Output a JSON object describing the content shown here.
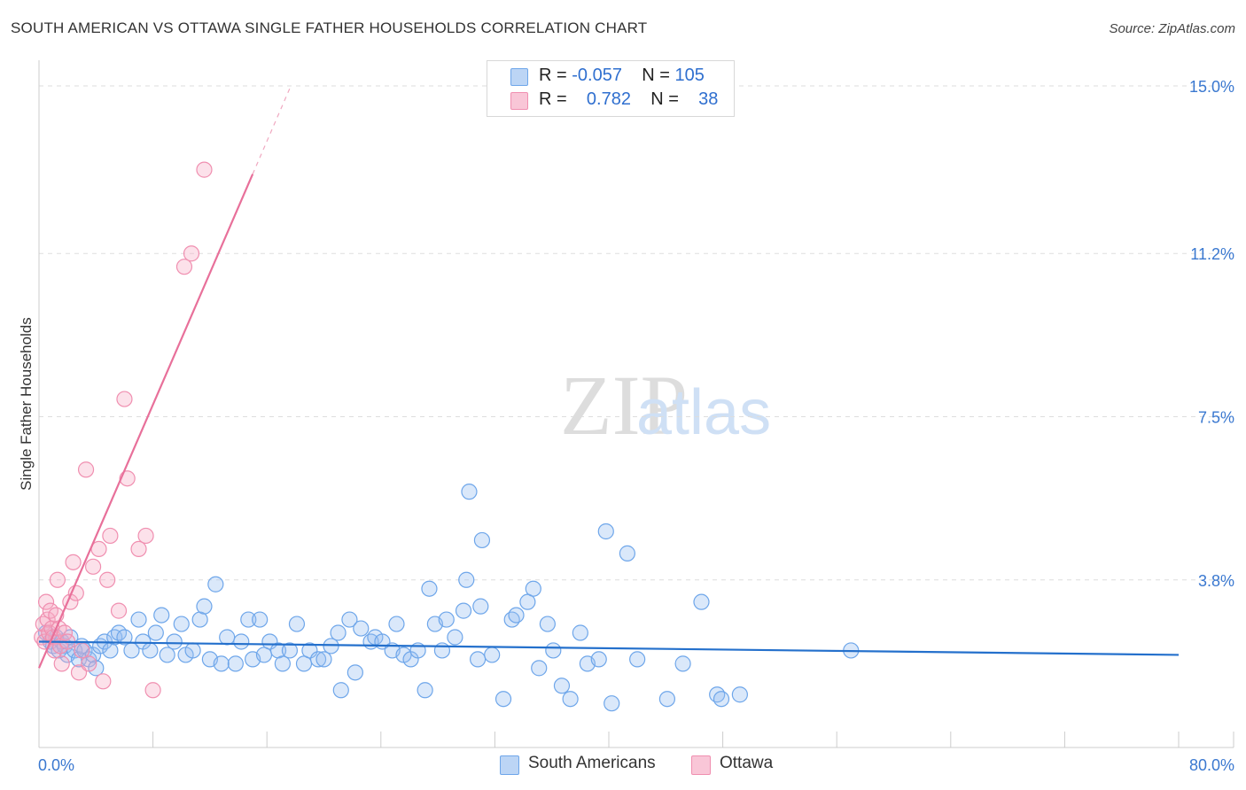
{
  "title": "SOUTH AMERICAN VS OTTAWA SINGLE FATHER HOUSEHOLDS CORRELATION CHART",
  "source": "Source: ZipAtlas.com",
  "watermark": {
    "part1": "ZIP",
    "part2": "atlas"
  },
  "legend_top": [
    {
      "r_label": "R = ",
      "r_value": "-0.057",
      "n_label": "N = ",
      "n_value": "105"
    },
    {
      "r_label": "R = ",
      "r_value": "0.782",
      "n_label": "N = ",
      "n_value": "38"
    }
  ],
  "chart_data": {
    "type": "scatter",
    "title": "SOUTH AMERICAN VS OTTAWA SINGLE FATHER HOUSEHOLDS CORRELATION CHART",
    "xlabel": "",
    "ylabel": "Single Father Households",
    "xlim": [
      0,
      80
    ],
    "ylim": [
      0,
      15
    ],
    "x_tick_labels": [
      "0.0%",
      "80.0%"
    ],
    "y_ticks": [
      3.8,
      7.5,
      11.2,
      15.0
    ],
    "y_tick_labels": [
      "3.8%",
      "7.5%",
      "11.2%",
      "15.0%"
    ],
    "grid": "horizontal dashed",
    "legend_position": "top-center and bottom",
    "colors": {
      "south_americans": "#6ea6ea",
      "ottawa": "#f08fb0",
      "blue_line": "#2470cc",
      "pink_line": "#e8709a"
    },
    "series": [
      {
        "name": "South Americans",
        "r": -0.057,
        "n": 105,
        "trend": {
          "x": [
            0,
            80
          ],
          "y": [
            2.4,
            2.1
          ]
        },
        "points": [
          [
            0.5,
            2.6
          ],
          [
            0.8,
            2.4
          ],
          [
            1.0,
            2.3
          ],
          [
            1.2,
            2.5
          ],
          [
            1.4,
            2.2
          ],
          [
            1.6,
            2.4
          ],
          [
            1.8,
            2.3
          ],
          [
            2.0,
            2.1
          ],
          [
            2.2,
            2.5
          ],
          [
            2.5,
            2.2
          ],
          [
            2.8,
            2.0
          ],
          [
            3.0,
            2.3
          ],
          [
            3.2,
            2.2
          ],
          [
            3.5,
            2.0
          ],
          [
            3.8,
            2.1
          ],
          [
            4.0,
            1.8
          ],
          [
            4.3,
            2.3
          ],
          [
            4.6,
            2.4
          ],
          [
            5.0,
            2.2
          ],
          [
            5.3,
            2.5
          ],
          [
            5.6,
            2.6
          ],
          [
            6.0,
            2.5
          ],
          [
            6.5,
            2.2
          ],
          [
            7.0,
            2.9
          ],
          [
            7.3,
            2.4
          ],
          [
            7.8,
            2.2
          ],
          [
            8.2,
            2.6
          ],
          [
            8.6,
            3.0
          ],
          [
            9.0,
            2.1
          ],
          [
            9.5,
            2.4
          ],
          [
            10.0,
            2.8
          ],
          [
            10.3,
            2.1
          ],
          [
            10.8,
            2.2
          ],
          [
            11.3,
            2.9
          ],
          [
            11.6,
            3.2
          ],
          [
            12.0,
            2.0
          ],
          [
            12.4,
            3.7
          ],
          [
            12.8,
            1.9
          ],
          [
            13.2,
            2.5
          ],
          [
            13.8,
            1.9
          ],
          [
            14.2,
            2.4
          ],
          [
            14.7,
            2.9
          ],
          [
            15.0,
            2.0
          ],
          [
            15.5,
            2.9
          ],
          [
            15.8,
            2.1
          ],
          [
            16.2,
            2.4
          ],
          [
            16.8,
            2.2
          ],
          [
            17.1,
            1.9
          ],
          [
            17.6,
            2.2
          ],
          [
            18.1,
            2.8
          ],
          [
            18.6,
            1.9
          ],
          [
            19.0,
            2.2
          ],
          [
            19.6,
            2.0
          ],
          [
            20.0,
            2.0
          ],
          [
            20.5,
            2.3
          ],
          [
            21.0,
            2.6
          ],
          [
            21.2,
            1.3
          ],
          [
            21.8,
            2.9
          ],
          [
            22.2,
            1.7
          ],
          [
            22.6,
            2.7
          ],
          [
            23.3,
            2.4
          ],
          [
            23.6,
            2.5
          ],
          [
            24.1,
            2.4
          ],
          [
            24.8,
            2.2
          ],
          [
            25.1,
            2.8
          ],
          [
            25.6,
            2.1
          ],
          [
            26.1,
            2.0
          ],
          [
            26.6,
            2.2
          ],
          [
            27.1,
            1.3
          ],
          [
            27.4,
            3.6
          ],
          [
            27.8,
            2.8
          ],
          [
            28.3,
            2.2
          ],
          [
            28.6,
            2.9
          ],
          [
            29.2,
            2.5
          ],
          [
            29.8,
            3.1
          ],
          [
            30.2,
            5.8
          ],
          [
            30.8,
            2.0
          ],
          [
            31.1,
            4.7
          ],
          [
            31.8,
            2.1
          ],
          [
            32.6,
            1.1
          ],
          [
            33.2,
            2.9
          ],
          [
            34.3,
            3.3
          ],
          [
            34.7,
            3.6
          ],
          [
            35.1,
            1.8
          ],
          [
            35.7,
            2.8
          ],
          [
            36.1,
            2.2
          ],
          [
            36.7,
            1.4
          ],
          [
            37.3,
            1.1
          ],
          [
            38.0,
            2.6
          ],
          [
            38.5,
            1.9
          ],
          [
            39.3,
            2.0
          ],
          [
            39.8,
            4.9
          ],
          [
            40.2,
            1.0
          ],
          [
            41.3,
            4.4
          ],
          [
            42.0,
            2.0
          ],
          [
            44.1,
            1.1
          ],
          [
            45.2,
            1.9
          ],
          [
            46.5,
            3.3
          ],
          [
            47.6,
            1.2
          ],
          [
            47.9,
            1.1
          ],
          [
            49.2,
            1.2
          ],
          [
            57.0,
            2.2
          ],
          [
            31.0,
            3.2
          ],
          [
            33.5,
            3.0
          ],
          [
            30.0,
            3.8
          ]
        ]
      },
      {
        "name": "Ottawa",
        "r": 0.782,
        "n": 38,
        "trend": {
          "x": [
            0,
            15
          ],
          "y": [
            1.8,
            13.0
          ]
        },
        "points": [
          [
            0.2,
            2.5
          ],
          [
            0.3,
            2.8
          ],
          [
            0.4,
            2.4
          ],
          [
            0.5,
            3.3
          ],
          [
            0.6,
            2.9
          ],
          [
            0.7,
            2.6
          ],
          [
            0.8,
            3.1
          ],
          [
            0.9,
            2.7
          ],
          [
            1.0,
            2.5
          ],
          [
            1.1,
            2.2
          ],
          [
            1.2,
            3.0
          ],
          [
            1.3,
            3.8
          ],
          [
            1.4,
            2.7
          ],
          [
            1.5,
            2.3
          ],
          [
            1.6,
            1.9
          ],
          [
            1.8,
            2.6
          ],
          [
            2.0,
            2.4
          ],
          [
            2.2,
            3.3
          ],
          [
            2.4,
            4.2
          ],
          [
            2.6,
            3.5
          ],
          [
            2.8,
            1.7
          ],
          [
            3.0,
            2.2
          ],
          [
            3.3,
            6.3
          ],
          [
            3.5,
            1.9
          ],
          [
            3.8,
            4.1
          ],
          [
            4.2,
            4.5
          ],
          [
            4.5,
            1.5
          ],
          [
            4.8,
            3.8
          ],
          [
            5.0,
            4.8
          ],
          [
            5.6,
            3.1
          ],
          [
            6.0,
            7.9
          ],
          [
            6.2,
            6.1
          ],
          [
            7.0,
            4.5
          ],
          [
            7.5,
            4.8
          ],
          [
            8.0,
            1.3
          ],
          [
            10.2,
            10.9
          ],
          [
            10.7,
            11.2
          ],
          [
            11.6,
            13.1
          ]
        ]
      }
    ]
  },
  "legend_bottom": [
    {
      "label": "South Americans"
    },
    {
      "label": "Ottawa"
    }
  ]
}
